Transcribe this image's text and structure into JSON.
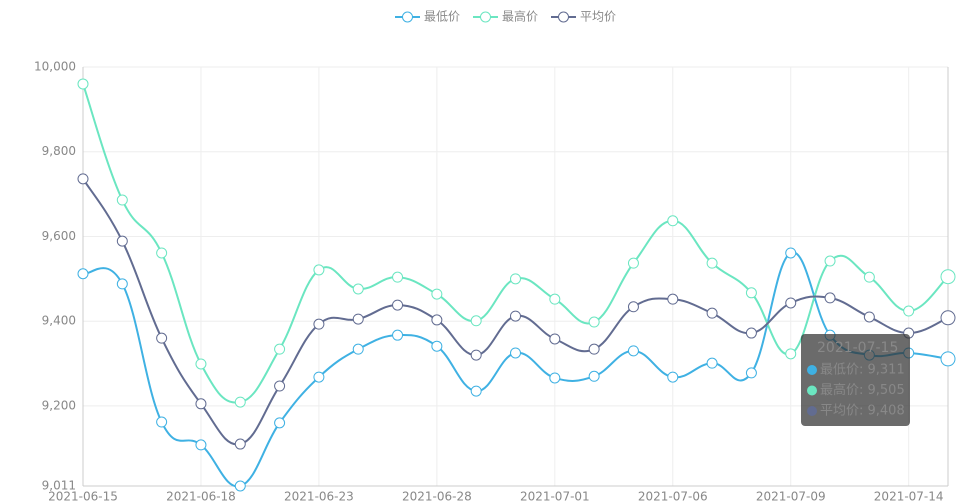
{
  "chart_data": {
    "type": "line",
    "categories": [
      "2021-06-15",
      null,
      null,
      "2021-06-18",
      null,
      null,
      "2021-06-23",
      null,
      null,
      "2021-06-28",
      null,
      null,
      "2021-07-01",
      null,
      null,
      "2021-07-06",
      null,
      null,
      "2021-07-09",
      null,
      null,
      "2021-07-14",
      "2021-07-15"
    ],
    "series": [
      {
        "name": "最低价",
        "color": "#3fb1e3",
        "values": [
          9512,
          9488,
          9162,
          9108,
          9011,
          9160,
          9268,
          9334,
          9367,
          9341,
          9235,
          9325,
          9266,
          9270,
          9330,
          9268,
          9301,
          9278,
          9561,
          9367,
          9320,
          9325,
          9311
        ]
      },
      {
        "name": "最高价",
        "color": "#6be6c1",
        "values": [
          9960,
          9686,
          9561,
          9299,
          9209,
          9334,
          9521,
          9476,
          9504,
          9464,
          9401,
          9500,
          9452,
          9398,
          9537,
          9637,
          9537,
          9467,
          9323,
          9542,
          9504,
          9424,
          9505
        ]
      },
      {
        "name": "平均价",
        "color": "#626c91",
        "values": [
          9736,
          9589,
          9360,
          9205,
          9110,
          9247,
          9393,
          9405,
          9438,
          9403,
          9320,
          9412,
          9358,
          9334,
          9434,
          9452,
          9419,
          9372,
          9443,
          9455,
          9410,
          9372,
          9408
        ]
      }
    ],
    "ylim": [
      9011,
      10000
    ],
    "yticks": [
      {
        "value": 9011,
        "label": "9,011"
      },
      {
        "value": 9200,
        "label": "9,200"
      },
      {
        "value": 9400,
        "label": "9,400"
      },
      {
        "value": 9600,
        "label": "9,600"
      },
      {
        "value": 9800,
        "label": "9,800"
      },
      {
        "value": 10000,
        "label": "10,000"
      }
    ],
    "grid": true,
    "smooth": true,
    "legend": "top",
    "tooltip": {
      "index": 22,
      "rows": [
        "最低价: 9,311",
        "最高价: 9,505",
        "平均价: 9,408"
      ]
    }
  }
}
